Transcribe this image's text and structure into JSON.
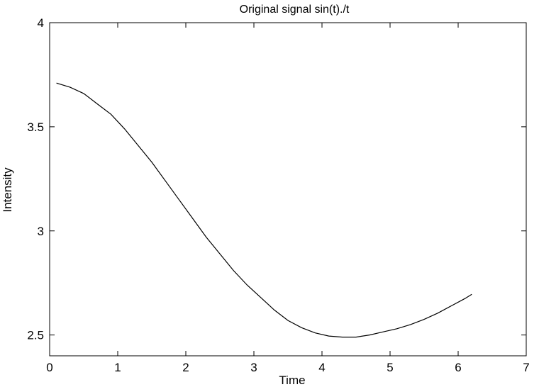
{
  "chart_data": {
    "type": "line",
    "title": "Original signal sin(t)./t",
    "xlabel": "Time",
    "ylabel": "Intensity",
    "xlim": [
      0,
      7
    ],
    "ylim": [
      2.4,
      4
    ],
    "xticks": [
      0,
      1,
      2,
      3,
      4,
      5,
      6,
      7
    ],
    "yticks": [
      2.5,
      3,
      3.5,
      4
    ],
    "grid": false,
    "series": [
      {
        "color": "#000000",
        "x": [
          0.1,
          0.3,
          0.5,
          0.7,
          0.9,
          1.1,
          1.3,
          1.5,
          1.7,
          1.9,
          2.1,
          2.3,
          2.5,
          2.7,
          2.9,
          3.1,
          3.3,
          3.5,
          3.7,
          3.9,
          4.1,
          4.3,
          4.5,
          4.7,
          4.9,
          5.1,
          5.3,
          5.5,
          5.7,
          5.9,
          6.1,
          6.2
        ],
        "y": [
          3.71,
          3.69,
          3.66,
          3.61,
          3.56,
          3.49,
          3.41,
          3.33,
          3.24,
          3.15,
          3.06,
          2.97,
          2.89,
          2.81,
          2.74,
          2.68,
          2.62,
          2.57,
          2.535,
          2.51,
          2.495,
          2.49,
          2.49,
          2.5,
          2.515,
          2.53,
          2.55,
          2.575,
          2.605,
          2.64,
          2.675,
          2.695
        ]
      }
    ]
  }
}
